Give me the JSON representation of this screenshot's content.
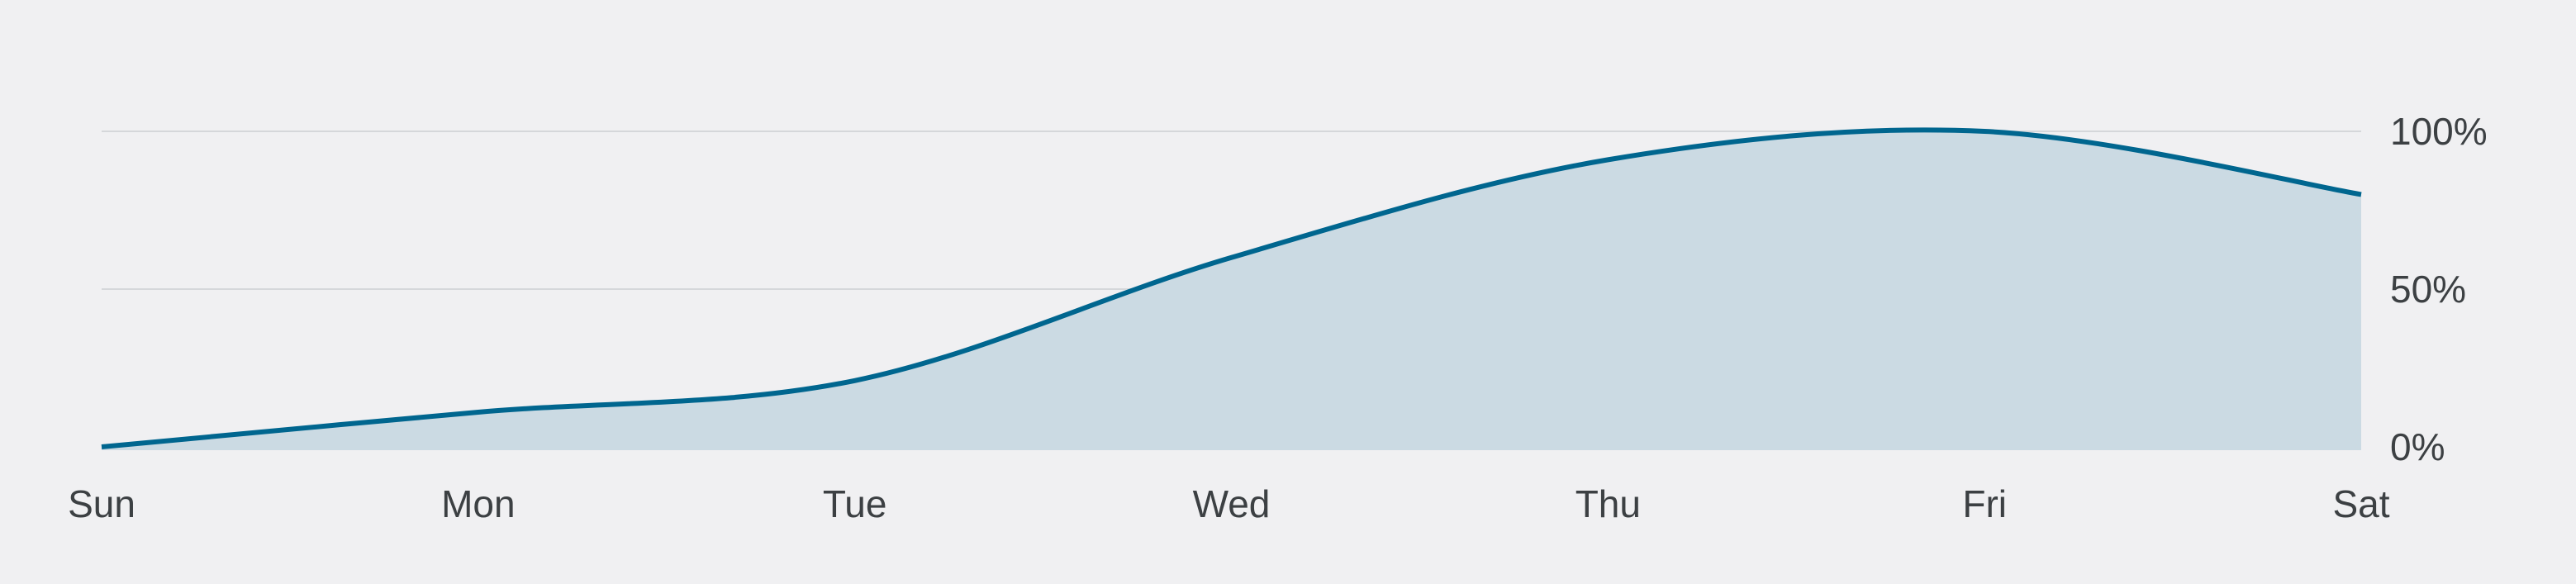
{
  "chart_data": {
    "type": "area",
    "title": "",
    "xlabel": "",
    "ylabel": "",
    "categories": [
      "Sun",
      "Mon",
      "Tue",
      "Wed",
      "Thu",
      "Fri",
      "Sat"
    ],
    "values": [
      0,
      11,
      21,
      60,
      91,
      100,
      80
    ],
    "ylim": [
      0,
      100
    ],
    "yticks": [
      0,
      50,
      100
    ],
    "ytick_labels": [
      "0%",
      "50%",
      "100%"
    ],
    "y_axis_position": "right",
    "grid": true,
    "curve": "smooth",
    "colors": {
      "line": "#00668f",
      "fill": "#cbdae3",
      "grid": "#d5d7da",
      "text": "#3c4043",
      "background": "#f0f0f2"
    }
  }
}
